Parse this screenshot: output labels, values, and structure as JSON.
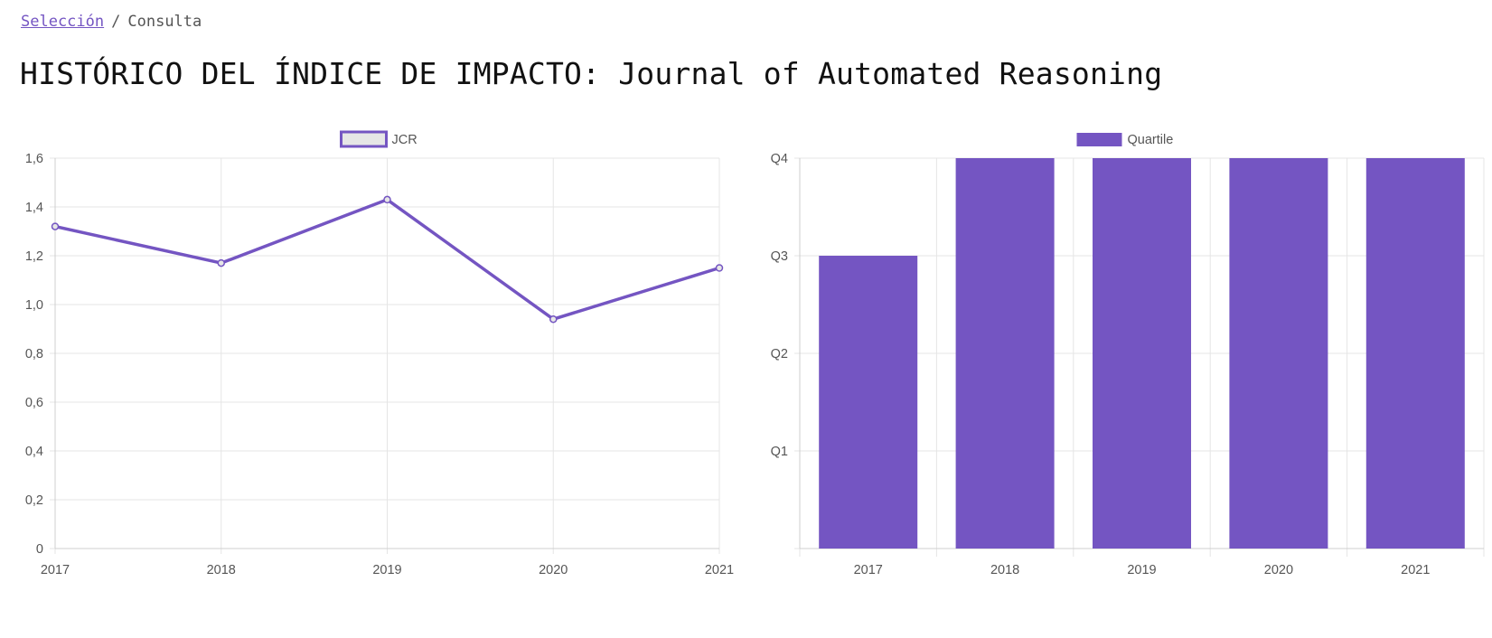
{
  "breadcrumb": {
    "link": "Selección",
    "separator": "/",
    "current": "Consulta"
  },
  "page_title": "HISTÓRICO DEL ÍNDICE DE IMPACTO: Journal of Automated Reasoning",
  "colors": {
    "accent": "#7455c2",
    "grid": "#e5e5e5",
    "legend_fill": "#e6e6e6"
  },
  "chart_data": [
    {
      "type": "line",
      "title": "",
      "legend": "JCR",
      "x": [
        "2017",
        "2018",
        "2019",
        "2020",
        "2021"
      ],
      "values": [
        1.32,
        1.17,
        1.43,
        0.94,
        1.15
      ],
      "ylim": [
        0,
        1.6
      ],
      "yticks": [
        "1,6",
        "1,4",
        "1,2",
        "1,0",
        "0,8",
        "0,6",
        "0,4",
        "0,2",
        "0"
      ],
      "legend_position": "top-center",
      "grid": true
    },
    {
      "type": "bar",
      "title": "",
      "legend": "Quartile",
      "categories": [
        "2017",
        "2018",
        "2019",
        "2020",
        "2021"
      ],
      "values": [
        3,
        4,
        4,
        4,
        4
      ],
      "ylim": [
        0,
        4
      ],
      "yticks": [
        "Q4",
        "Q3",
        "Q2",
        "Q1"
      ],
      "legend_position": "top-center",
      "grid": true
    }
  ]
}
